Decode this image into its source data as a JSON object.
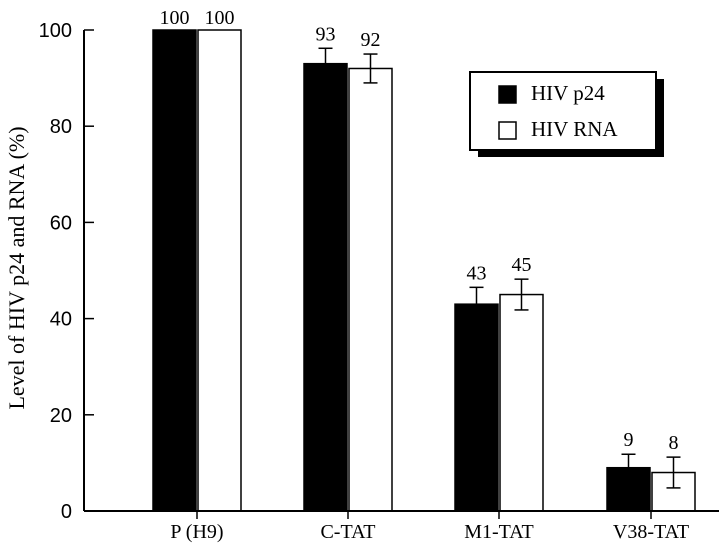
{
  "chart_data": {
    "type": "bar",
    "title": "",
    "xlabel": "",
    "ylabel": "Level of HIV p24 and RNA (%)",
    "ylim": [
      0,
      100
    ],
    "yticks": [
      0,
      20,
      40,
      60,
      80,
      100
    ],
    "grid": false,
    "legend_position": "top-right",
    "categories": [
      "P (H9)",
      "C-TAT",
      "M1-TAT",
      "V38-TAT"
    ],
    "series": [
      {
        "name": "HIV p24",
        "fill": "#000000",
        "values": [
          100,
          93,
          43,
          9
        ],
        "labels": [
          "100",
          "93",
          "43",
          "9"
        ],
        "error": [
          0,
          3.2,
          3.5,
          2.8
        ]
      },
      {
        "name": "HIV RNA",
        "fill": "#ffffff",
        "values": [
          100,
          92,
          45,
          8
        ],
        "labels": [
          "100",
          "92",
          "45",
          "8"
        ],
        "error": [
          0,
          3.0,
          3.2,
          3.2
        ]
      }
    ]
  }
}
